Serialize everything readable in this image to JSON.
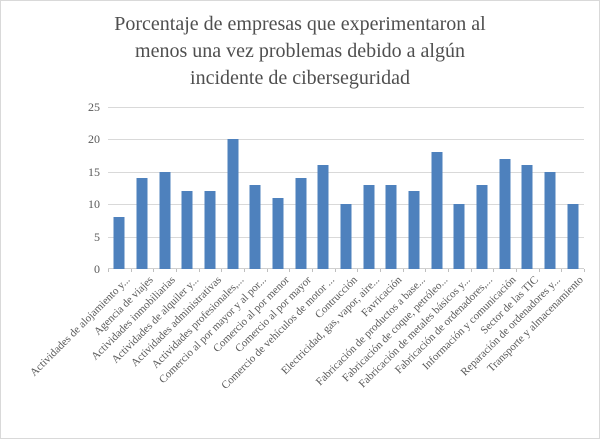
{
  "chart_data": {
    "type": "bar",
    "title": "Porcentaje de empresas que experimentaron al menos una vez problemas debido a algún incidente de ciberseguridad",
    "title_lines": [
      "Porcentaje de empresas que experimentaron al",
      "menos una vez problemas debido a algún",
      "incidente de ciberseguridad"
    ],
    "categories": [
      "Actividades de alojamiento y...",
      "Agencia de viajes",
      "Actividades inmobiliarias",
      "Actividades de alquiler y...",
      "Actividades administrativas",
      "Actividades profesionales,...",
      "Comercio al por mayor y al por...",
      "Comercio al por menor",
      "Comercio al por mayor",
      "Comercio de vehículos de motor ...",
      "Contrucción",
      "Electricidad, gas, vapor, aire...",
      "Favricación",
      "Fabricación de productos a base...",
      "Fabricación de coque, petróleo...",
      "Fabricación de metales básicos y...",
      "Fabricación de ordenadores,...",
      "Información y comunicación",
      "Sector de las TIC",
      "Reparación de ordenadores y...",
      "Transporte y almacenamiento"
    ],
    "values": [
      8,
      14,
      15,
      12,
      12,
      20,
      13,
      11,
      14,
      16,
      10,
      13,
      13,
      12,
      18,
      10,
      13,
      17,
      16,
      15,
      10
    ],
    "xlabel": "",
    "ylabel": "",
    "ylim": [
      0,
      25
    ],
    "yticks": [
      0,
      5,
      10,
      15,
      20,
      25
    ],
    "grid": true,
    "legend": false,
    "bar_color": "#4e81bd",
    "gridline_color": "#d9d9d9",
    "axis_text_color": "#595959",
    "title_color": "#4f4f4f"
  }
}
